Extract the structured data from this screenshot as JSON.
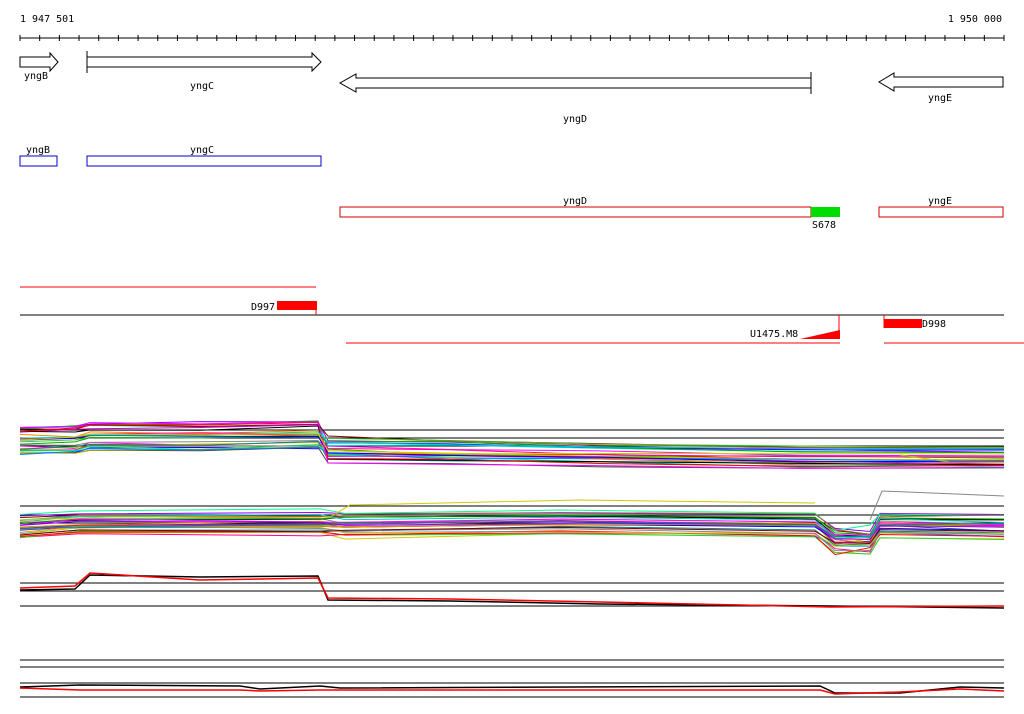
{
  "coordinates": {
    "start": "1 947 501",
    "end": "1 950 000"
  },
  "gene_arrows": [
    {
      "name": "yngB",
      "direction": "forward"
    },
    {
      "name": "yngC",
      "direction": "forward"
    },
    {
      "name": "yngD",
      "direction": "reverse"
    },
    {
      "name": "yngE",
      "direction": "reverse"
    }
  ],
  "cds_boxes": [
    {
      "name": "yngB",
      "color": "#0000cc"
    },
    {
      "name": "yngC",
      "color": "#0000cc"
    },
    {
      "name": "yngD",
      "color": "#cc0000"
    },
    {
      "name": "yngE",
      "color": "#cc0000"
    }
  ],
  "features": {
    "s678": {
      "label": "S678",
      "color": "#00dd00"
    },
    "d997": {
      "label": "D997",
      "color": "#ff0000"
    },
    "u1475": {
      "label": "U1475.M8",
      "color": "#ff0000"
    },
    "d998": {
      "label": "D998",
      "color": "#ff0000"
    }
  },
  "colors": {
    "axis": "#000000",
    "forward_strand_genes": "#0000cc",
    "reverse_strand_genes": "#cc0000",
    "feature_red": "#ff0000",
    "feature_green": "#00dd00"
  }
}
